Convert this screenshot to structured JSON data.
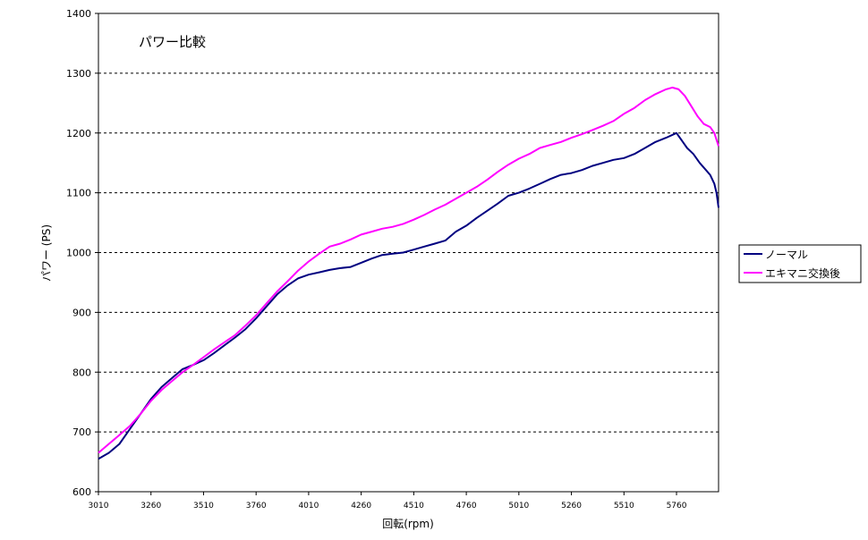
{
  "chart_data": {
    "type": "line",
    "title": "パワー比較",
    "xlabel": "回転(rpm)",
    "ylabel": "パワー (PS)",
    "ylim": [
      600,
      1400
    ],
    "yticks": [
      600,
      700,
      800,
      900,
      1000,
      1100,
      1200,
      1300,
      1400
    ],
    "xlim": [
      3010,
      5960
    ],
    "xticks": [
      3010,
      3260,
      3510,
      3760,
      4010,
      4260,
      4510,
      4760,
      5010,
      5260,
      5510,
      5760
    ],
    "grid": "horizontal dashed",
    "legend_position": "right",
    "series": [
      {
        "name": "ノーマル",
        "color": "#000080",
        "points": [
          [
            3010,
            655
          ],
          [
            3060,
            665
          ],
          [
            3110,
            680
          ],
          [
            3160,
            705
          ],
          [
            3210,
            730
          ],
          [
            3260,
            755
          ],
          [
            3310,
            775
          ],
          [
            3360,
            790
          ],
          [
            3410,
            805
          ],
          [
            3460,
            812
          ],
          [
            3510,
            820
          ],
          [
            3560,
            832
          ],
          [
            3610,
            845
          ],
          [
            3660,
            858
          ],
          [
            3710,
            872
          ],
          [
            3760,
            890
          ],
          [
            3810,
            910
          ],
          [
            3860,
            930
          ],
          [
            3910,
            945
          ],
          [
            3960,
            957
          ],
          [
            4010,
            963
          ],
          [
            4060,
            967
          ],
          [
            4110,
            971
          ],
          [
            4160,
            974
          ],
          [
            4210,
            976
          ],
          [
            4260,
            983
          ],
          [
            4310,
            990
          ],
          [
            4360,
            996
          ],
          [
            4410,
            998
          ],
          [
            4460,
            1000
          ],
          [
            4510,
            1005
          ],
          [
            4560,
            1010
          ],
          [
            4610,
            1015
          ],
          [
            4660,
            1020
          ],
          [
            4710,
            1035
          ],
          [
            4760,
            1045
          ],
          [
            4810,
            1058
          ],
          [
            4860,
            1070
          ],
          [
            4910,
            1082
          ],
          [
            4960,
            1095
          ],
          [
            5010,
            1100
          ],
          [
            5060,
            1107
          ],
          [
            5110,
            1115
          ],
          [
            5160,
            1123
          ],
          [
            5210,
            1130
          ],
          [
            5260,
            1133
          ],
          [
            5310,
            1138
          ],
          [
            5360,
            1145
          ],
          [
            5410,
            1150
          ],
          [
            5460,
            1155
          ],
          [
            5510,
            1158
          ],
          [
            5560,
            1165
          ],
          [
            5610,
            1175
          ],
          [
            5660,
            1185
          ],
          [
            5710,
            1192
          ],
          [
            5760,
            1200
          ],
          [
            5790,
            1185
          ],
          [
            5810,
            1175
          ],
          [
            5840,
            1165
          ],
          [
            5870,
            1150
          ],
          [
            5900,
            1138
          ],
          [
            5920,
            1130
          ],
          [
            5940,
            1115
          ],
          [
            5950,
            1100
          ],
          [
            5960,
            1075
          ]
        ]
      },
      {
        "name": "エキマニ交換後",
        "color": "#FF00FF",
        "points": [
          [
            3010,
            665
          ],
          [
            3060,
            680
          ],
          [
            3110,
            695
          ],
          [
            3160,
            710
          ],
          [
            3210,
            730
          ],
          [
            3260,
            752
          ],
          [
            3310,
            770
          ],
          [
            3360,
            785
          ],
          [
            3410,
            800
          ],
          [
            3460,
            812
          ],
          [
            3510,
            825
          ],
          [
            3560,
            838
          ],
          [
            3610,
            850
          ],
          [
            3660,
            862
          ],
          [
            3710,
            878
          ],
          [
            3760,
            895
          ],
          [
            3810,
            915
          ],
          [
            3860,
            935
          ],
          [
            3910,
            952
          ],
          [
            3960,
            970
          ],
          [
            4010,
            985
          ],
          [
            4060,
            998
          ],
          [
            4110,
            1010
          ],
          [
            4160,
            1015
          ],
          [
            4210,
            1022
          ],
          [
            4260,
            1030
          ],
          [
            4310,
            1035
          ],
          [
            4360,
            1040
          ],
          [
            4410,
            1043
          ],
          [
            4460,
            1048
          ],
          [
            4510,
            1055
          ],
          [
            4560,
            1063
          ],
          [
            4610,
            1072
          ],
          [
            4660,
            1080
          ],
          [
            4710,
            1090
          ],
          [
            4760,
            1100
          ],
          [
            4810,
            1110
          ],
          [
            4860,
            1122
          ],
          [
            4910,
            1135
          ],
          [
            4960,
            1147
          ],
          [
            5010,
            1157
          ],
          [
            5060,
            1165
          ],
          [
            5110,
            1175
          ],
          [
            5160,
            1180
          ],
          [
            5210,
            1185
          ],
          [
            5260,
            1192
          ],
          [
            5310,
            1198
          ],
          [
            5360,
            1205
          ],
          [
            5410,
            1212
          ],
          [
            5460,
            1220
          ],
          [
            5510,
            1232
          ],
          [
            5560,
            1242
          ],
          [
            5610,
            1255
          ],
          [
            5660,
            1265
          ],
          [
            5710,
            1273
          ],
          [
            5740,
            1276
          ],
          [
            5770,
            1273
          ],
          [
            5800,
            1262
          ],
          [
            5830,
            1245
          ],
          [
            5860,
            1228
          ],
          [
            5890,
            1215
          ],
          [
            5920,
            1210
          ],
          [
            5940,
            1200
          ],
          [
            5960,
            1178
          ]
        ]
      }
    ]
  }
}
